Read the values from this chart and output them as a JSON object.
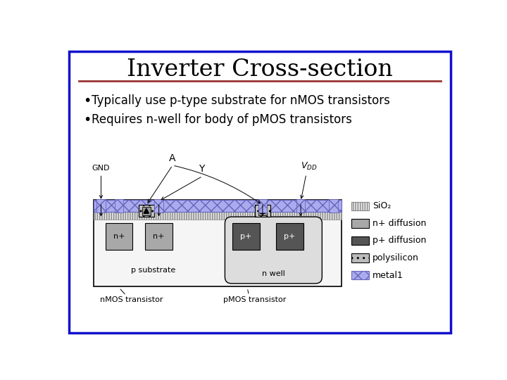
{
  "title": "Inverter Cross-section",
  "bullet1": "Typically use p-type substrate for nMOS transistors",
  "bullet2": "Requires n-well for body of pMOS transistors",
  "bg_color": "#ffffff",
  "border_color": "#1111cc",
  "title_underline_color": "#993333",
  "legend_items": [
    {
      "label": "SiO₂",
      "color": "#e8e8e8",
      "hatch": "|||"
    },
    {
      "label": "n+ diffusion",
      "color": "#a8a8a8",
      "hatch": ""
    },
    {
      "label": "p+ diffusion",
      "color": "#555555",
      "hatch": ""
    },
    {
      "label": "polysilicon",
      "color": "#bbbbbb",
      "hatch": ".."
    },
    {
      "label": "metal1",
      "color": "#aaaaee",
      "hatch": "xx"
    }
  ],
  "colors": {
    "p_substrate": "#f5f5f5",
    "n_well": "#dddddd",
    "n_plus": "#a8a8a8",
    "p_plus": "#555555",
    "sio2": "#e0e0e0",
    "metal1": "#aaaaee",
    "poly": "#c0c0c0"
  }
}
